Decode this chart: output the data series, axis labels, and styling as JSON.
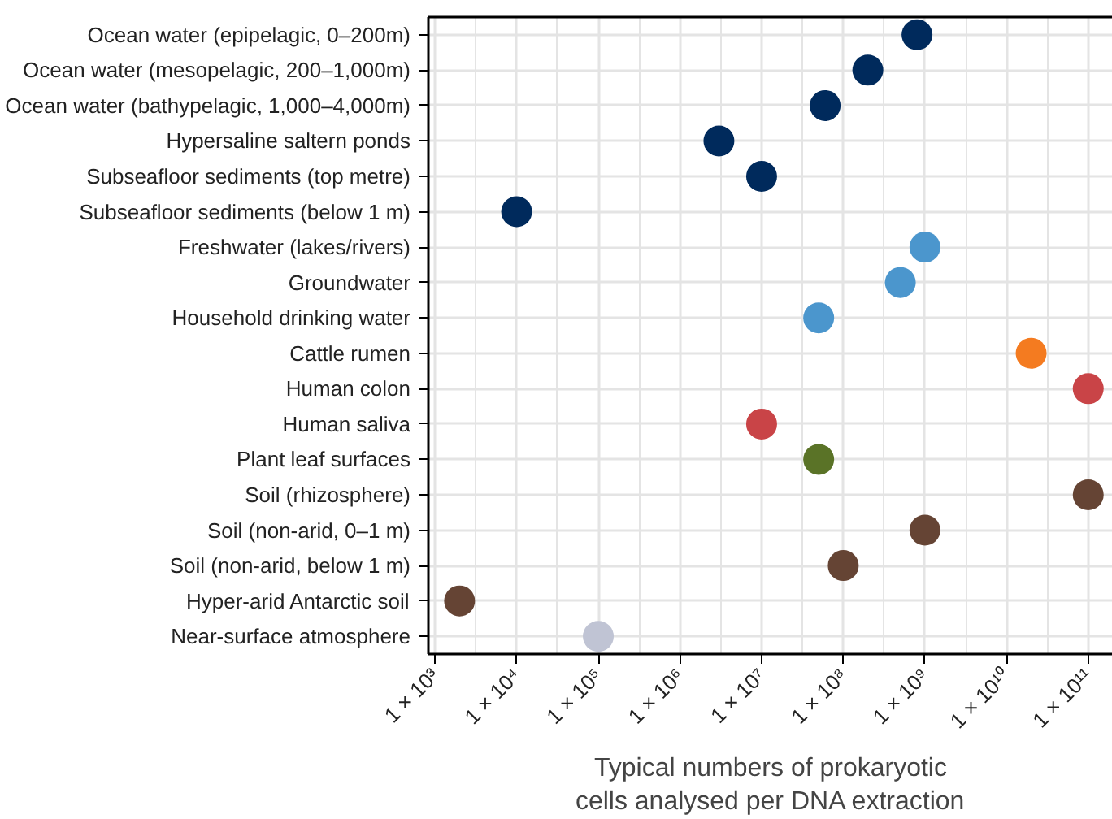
{
  "chart_data": {
    "type": "scatter",
    "xlabel": "Typical numbers of prokaryotic cells analysed per DNA extraction",
    "categories": [
      "Ocean water (epipelagic, 0–200m)",
      "Ocean water (mesopelagic, 200–1,000m)",
      "Ocean water (bathypelagic, 1,000–4,000m)",
      "Hypersaline saltern ponds",
      "Subseafloor sediments (top metre)",
      "Subseafloor sediments (below 1 m)",
      "Freshwater (lakes/rivers)",
      "Groundwater",
      "Household drinking water",
      "Cattle rumen",
      "Human colon",
      "Human saliva",
      "Plant leaf surfaces",
      "Soil (rhizosphere)",
      "Soil (non-arid, 0–1 m)",
      "Soil (non-arid, below 1 m)",
      "Hyper-arid Antarctic soil",
      "Near-surface atmosphere"
    ],
    "values": [
      800000000,
      200000000,
      60000000,
      3000000,
      10000000,
      10000,
      1000000000,
      500000000,
      50000000,
      20000000000,
      100000000000,
      10000000,
      50000000,
      100000000000,
      1000000000,
      100000000,
      2000,
      100000
    ],
    "colors": [
      "#002a5c",
      "#002a5c",
      "#002a5c",
      "#002a5c",
      "#002a5c",
      "#002a5c",
      "#4b96cd",
      "#4b96cd",
      "#4b96cd",
      "#f47b20",
      "#c94447",
      "#c94447",
      "#5a7327",
      "#654434",
      "#654434",
      "#654434",
      "#654434",
      "#c0c4d4"
    ],
    "log": "x",
    "xlim": [
      830,
      200000000000
    ],
    "xticks": [
      {
        "value": 1000,
        "label": "1 × 10³"
      },
      {
        "value": 10000,
        "label": "1 × 10⁴"
      },
      {
        "value": 100000,
        "label": "1 × 10⁵"
      },
      {
        "value": 1000000,
        "label": "1 × 10⁶"
      },
      {
        "value": 10000000,
        "label": "1 × 10⁷"
      },
      {
        "value": 100000000,
        "label": "1 × 10⁸"
      },
      {
        "value": 1000000000,
        "label": "1 × 10⁹"
      },
      {
        "value": 10000000000,
        "label": "1 × 10¹⁰"
      },
      {
        "value": 100000000000,
        "label": "1 × 10¹¹"
      }
    ],
    "grid": true,
    "orientation": "horizontal",
    "marker": "circle"
  }
}
